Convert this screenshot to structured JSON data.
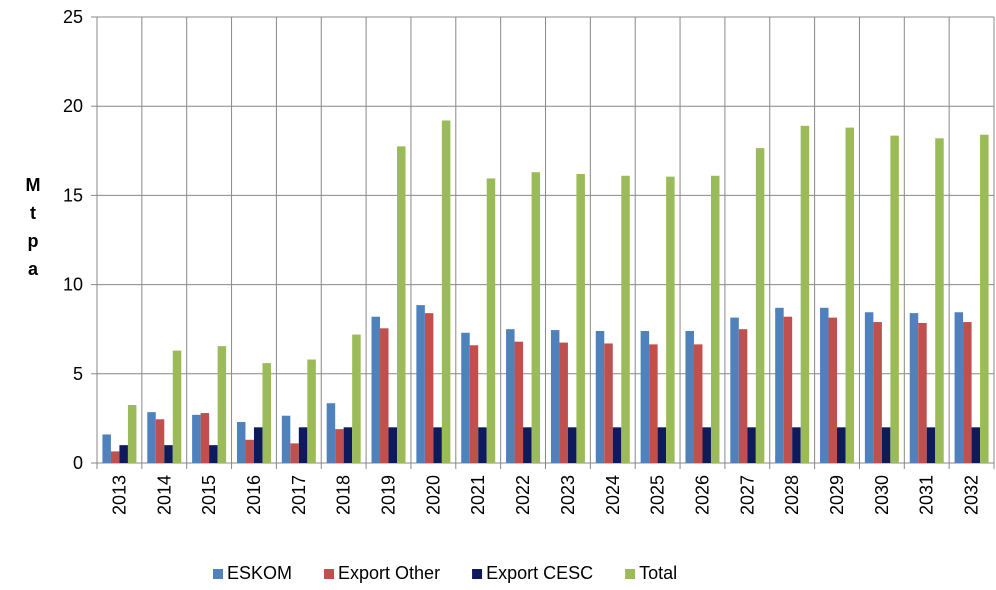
{
  "chart_data": {
    "type": "bar",
    "y_label": "Mtpa",
    "categories": [
      "2013",
      "2014",
      "2015",
      "2016",
      "2017",
      "2018",
      "2019",
      "2020",
      "2021",
      "2022",
      "2023",
      "2024",
      "2025",
      "2026",
      "2027",
      "2028",
      "2029",
      "2030",
      "2031",
      "2032"
    ],
    "series": [
      {
        "name": "ESKOM",
        "color": "#4f81bd",
        "values": [
          1.6,
          2.85,
          2.7,
          2.3,
          2.65,
          3.35,
          8.2,
          8.85,
          7.3,
          7.5,
          7.45,
          7.4,
          7.4,
          7.4,
          8.15,
          8.7,
          8.7,
          8.45,
          8.4,
          8.45
        ]
      },
      {
        "name": "Export Other",
        "color": "#c0504d",
        "values": [
          0.65,
          2.45,
          2.8,
          1.3,
          1.1,
          1.9,
          7.55,
          8.4,
          6.6,
          6.8,
          6.75,
          6.7,
          6.65,
          6.65,
          7.5,
          8.2,
          8.15,
          7.9,
          7.85,
          7.9
        ]
      },
      {
        "name": "Export CESC",
        "color": "#0e1a5c",
        "values": [
          1,
          1,
          1,
          2,
          2,
          2,
          2,
          2,
          2,
          2,
          2,
          2,
          2,
          2,
          2,
          2,
          2,
          2,
          2,
          2
        ]
      },
      {
        "name": "Total",
        "color": "#9bbb59",
        "values": [
          3.25,
          6.3,
          6.55,
          5.6,
          5.8,
          7.2,
          17.75,
          19.2,
          15.95,
          16.3,
          16.2,
          16.1,
          16.05,
          16.1,
          17.65,
          18.9,
          18.8,
          18.35,
          18.2,
          18.4
        ]
      }
    ],
    "ylim": [
      0,
      25
    ],
    "yticks": [
      0,
      5,
      10,
      15,
      20,
      25
    ],
    "grid": true,
    "legend": "bottom"
  }
}
